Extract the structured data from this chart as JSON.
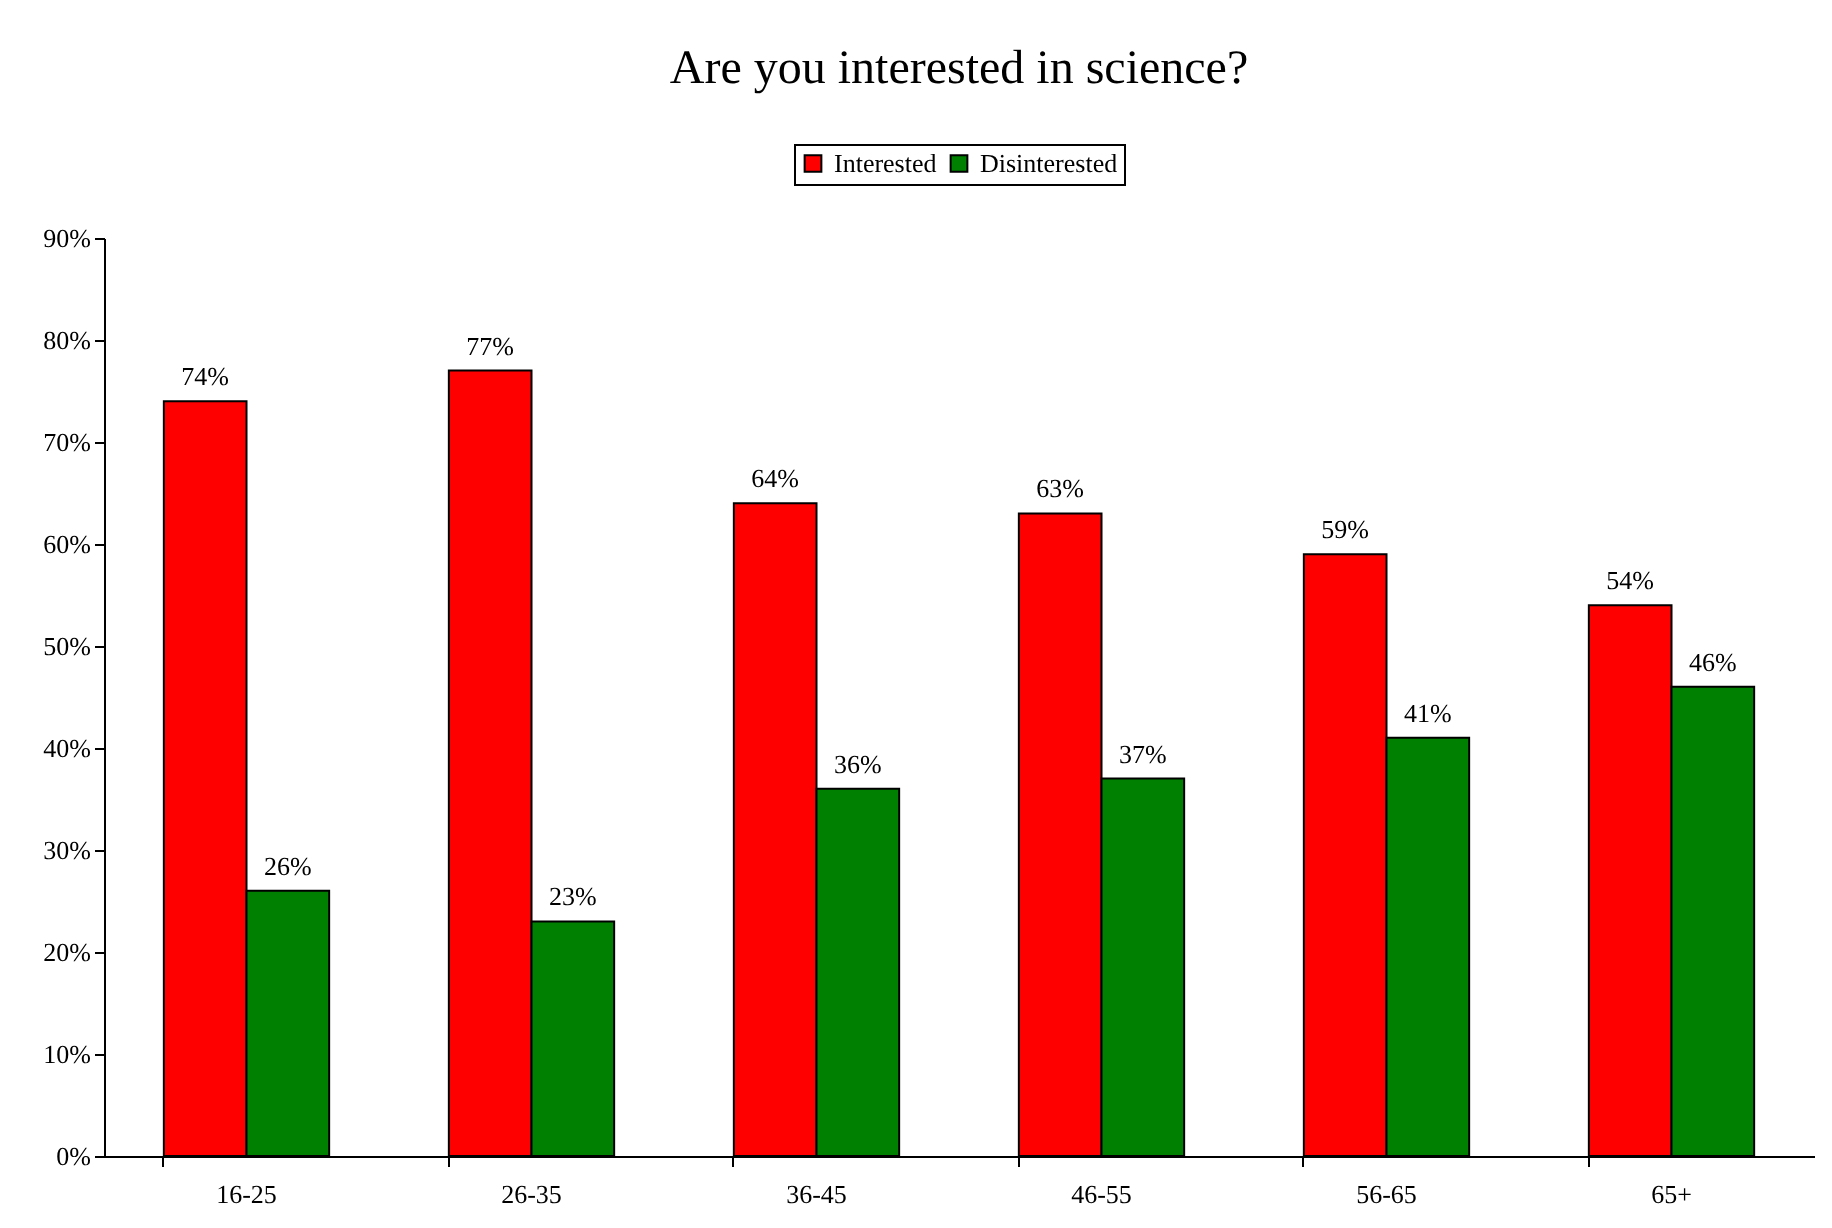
{
  "chart_data": {
    "type": "bar",
    "title": "Are you interested in science?",
    "categories": [
      "16-25",
      "26-35",
      "36-45",
      "46-55",
      "56-65",
      "65+"
    ],
    "series": [
      {
        "name": "Interested",
        "color": "#ff0000",
        "values": [
          74,
          77,
          64,
          63,
          59,
          54
        ],
        "value_labels": [
          "74%",
          "77%",
          "64%",
          "63%",
          "59%",
          "54%"
        ]
      },
      {
        "name": "Disinterested",
        "color": "#008000",
        "values": [
          26,
          23,
          36,
          37,
          41,
          46
        ],
        "value_labels": [
          "26%",
          "23%",
          "36%",
          "37%",
          "41%",
          "46%"
        ]
      }
    ],
    "ylim": [
      0,
      90
    ],
    "yticks": [
      {
        "value": 0,
        "label": "0%"
      },
      {
        "value": 10,
        "label": "10%"
      },
      {
        "value": 20,
        "label": "20%"
      },
      {
        "value": 30,
        "label": "30%"
      },
      {
        "value": 40,
        "label": "40%"
      },
      {
        "value": 50,
        "label": "50%"
      },
      {
        "value": 60,
        "label": "60%"
      },
      {
        "value": 70,
        "label": "70%"
      },
      {
        "value": 80,
        "label": "80%"
      },
      {
        "value": 90,
        "label": "90%"
      }
    ],
    "grid": false,
    "legend": "top"
  }
}
